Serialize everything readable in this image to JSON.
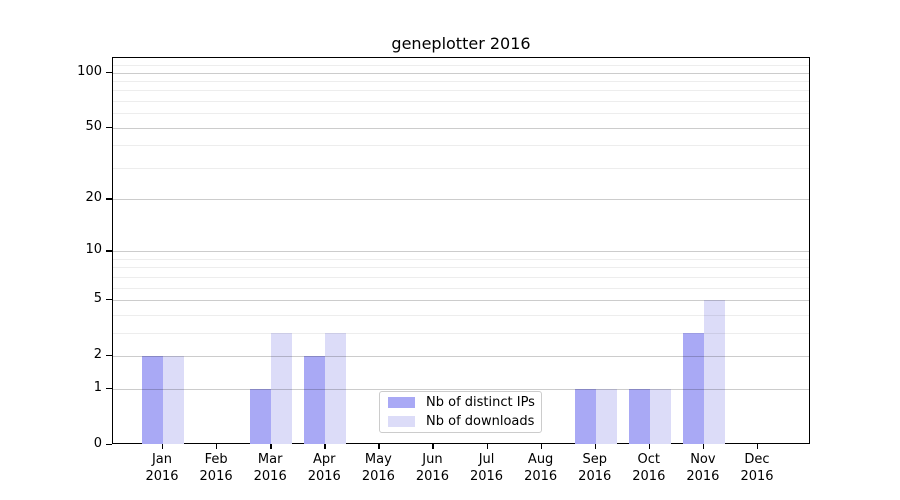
{
  "chart_data": {
    "type": "bar",
    "title": "geneplotter 2016",
    "categories": [
      "Jan",
      "Feb",
      "Mar",
      "Apr",
      "May",
      "Jun",
      "Jul",
      "Aug",
      "Sep",
      "Oct",
      "Nov",
      "Dec"
    ],
    "category_year": "2016",
    "series": [
      {
        "name": "Nb of distinct IPs",
        "color": "#a9a9f5",
        "values": [
          2,
          0,
          1,
          2,
          0,
          0,
          0,
          0,
          1,
          1,
          3,
          0
        ]
      },
      {
        "name": "Nb of downloads",
        "color": "#dcdcf8",
        "values": [
          2,
          0,
          3,
          3,
          0,
          0,
          0,
          0,
          1,
          1,
          5,
          0
        ]
      }
    ],
    "xlabel": "",
    "ylabel": "",
    "y_axis": {
      "scale": "log10(1+x)",
      "max": 120,
      "ticks": [
        0,
        1,
        2,
        5,
        10,
        20,
        50,
        100
      ],
      "minor_gridlines": [
        3,
        4,
        6,
        7,
        8,
        9,
        30,
        40,
        60,
        70,
        80,
        90,
        110
      ]
    },
    "grid": "on",
    "legend_position": "lower center",
    "colors": {
      "background": "#ffffff",
      "axis": "#000000",
      "major_grid": "#cccccc",
      "minor_grid": "#ededed",
      "legend_border": "#cccccc"
    }
  }
}
